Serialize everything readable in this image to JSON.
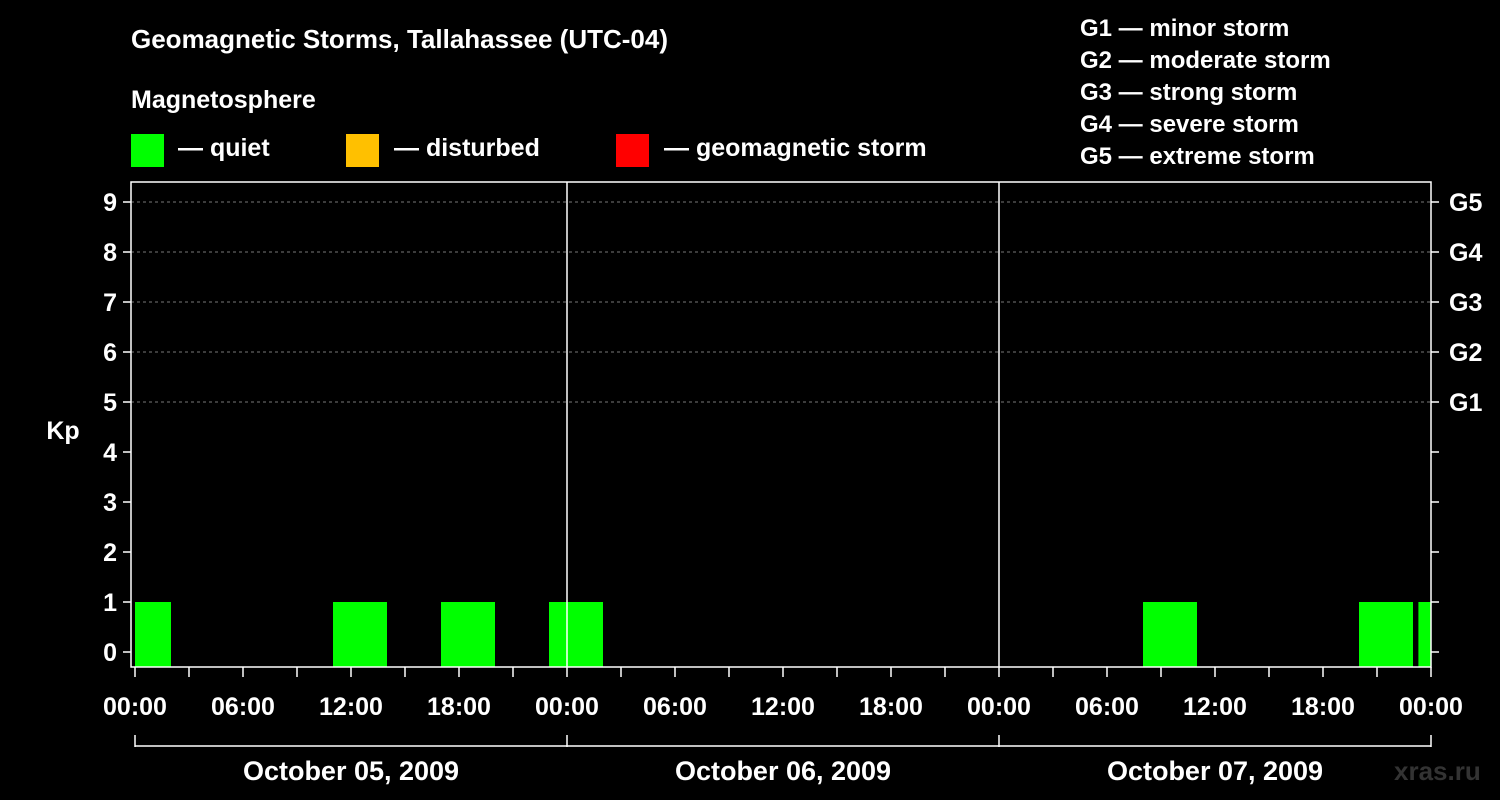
{
  "header": {
    "title": "Geomagnetic Storms, Tallahassee (UTC-04)",
    "subtitle": "Magnetosphere"
  },
  "legend": [
    {
      "color": "#00ff00",
      "label": "— quiet"
    },
    {
      "color": "#ffc000",
      "label": "— disturbed"
    },
    {
      "color": "#ff0000",
      "label": "— geomagnetic storm"
    }
  ],
  "g_scale": [
    "G1 — minor storm",
    "G2 — moderate storm",
    "G3 — strong storm",
    "G4 — severe storm",
    "G5 — extreme storm"
  ],
  "watermark": "xras.ru",
  "chart_data": {
    "type": "bar",
    "title": "Geomagnetic Storms, Tallahassee (UTC-04)",
    "ylabel": "Kp",
    "ylim": [
      0,
      9
    ],
    "xlim_hours": [
      0,
      72
    ],
    "y_ticks": [
      "0",
      "1",
      "2",
      "3",
      "4",
      "5",
      "6",
      "7",
      "8",
      "9"
    ],
    "right_labels": [
      {
        "kp": 5,
        "label": "G1"
      },
      {
        "kp": 6,
        "label": "G2"
      },
      {
        "kp": 7,
        "label": "G3"
      },
      {
        "kp": 8,
        "label": "G4"
      },
      {
        "kp": 9,
        "label": "G5"
      }
    ],
    "x_tick_labels": [
      {
        "hour": 0,
        "label": "00:00"
      },
      {
        "hour": 6,
        "label": "06:00"
      },
      {
        "hour": 12,
        "label": "12:00"
      },
      {
        "hour": 18,
        "label": "18:00"
      },
      {
        "hour": 24,
        "label": "00:00"
      },
      {
        "hour": 30,
        "label": "06:00"
      },
      {
        "hour": 36,
        "label": "12:00"
      },
      {
        "hour": 42,
        "label": "18:00"
      },
      {
        "hour": 48,
        "label": "00:00"
      },
      {
        "hour": 54,
        "label": "06:00"
      },
      {
        "hour": 60,
        "label": "12:00"
      },
      {
        "hour": 66,
        "label": "18:00"
      },
      {
        "hour": 72,
        "label": "00:00"
      }
    ],
    "days": [
      {
        "start": 0,
        "end": 24,
        "label": "October 05, 2009"
      },
      {
        "start": 24,
        "end": 48,
        "label": "October 06, 2009"
      },
      {
        "start": 48,
        "end": 72,
        "label": "October 07, 2009"
      }
    ],
    "bars": [
      {
        "start": 0,
        "end": 2,
        "kp": 1,
        "status": "quiet"
      },
      {
        "start": 11,
        "end": 14,
        "kp": 1,
        "status": "quiet"
      },
      {
        "start": 17,
        "end": 20,
        "kp": 1,
        "status": "quiet"
      },
      {
        "start": 23,
        "end": 26,
        "kp": 1,
        "status": "quiet"
      },
      {
        "start": 56,
        "end": 59,
        "kp": 1,
        "status": "quiet"
      },
      {
        "start": 68,
        "end": 71,
        "kp": 1,
        "status": "quiet"
      },
      {
        "start": 71.3,
        "end": 72,
        "kp": 1,
        "status": "quiet"
      }
    ],
    "status_colors": {
      "quiet": "#00ff00",
      "disturbed": "#ffc000",
      "storm": "#ff0000"
    }
  }
}
